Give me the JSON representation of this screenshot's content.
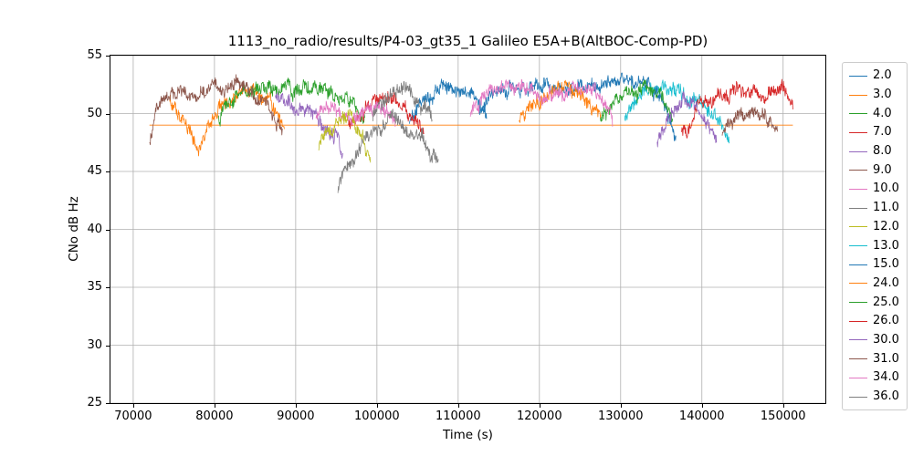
{
  "chart_data": {
    "type": "line",
    "title": "1113_no_radio/results/P4-03_gt35_1 Galileo E5A+B(AltBOC-Comp-PD)",
    "xlabel": "Time (s)",
    "ylabel": "CNo dB Hz",
    "xlim": [
      67200,
      155200
    ],
    "ylim": [
      25,
      55
    ],
    "xticks": [
      70000,
      80000,
      90000,
      100000,
      110000,
      120000,
      130000,
      140000,
      150000
    ],
    "yticks": [
      25,
      30,
      35,
      40,
      45,
      50,
      55
    ],
    "grid": true,
    "grid_color": "#b0b0b0",
    "legend_position": "right",
    "noise": {
      "step": 50,
      "fast": 0.45,
      "slow": 0.5
    },
    "reference_line": {
      "y": 49,
      "x": [
        72000,
        151200
      ],
      "color": "#ff7f0e"
    },
    "series": [
      {
        "name": "2.0",
        "color": "#1f77b4",
        "points": [
          [
            104000,
            49.3
          ],
          [
            105500,
            51.0
          ],
          [
            107000,
            52.0
          ],
          [
            109000,
            52.4
          ],
          [
            111000,
            52.2
          ],
          [
            112500,
            51.2
          ],
          [
            113500,
            49.8
          ]
        ]
      },
      {
        "name": "3.0",
        "color": "#ff7f0e",
        "points": [
          [
            74500,
            51.6
          ],
          [
            75800,
            50.0
          ],
          [
            77200,
            48.0
          ],
          [
            78200,
            47.2
          ],
          [
            79500,
            49.2
          ],
          [
            81000,
            50.8
          ],
          [
            83000,
            51.8
          ],
          [
            85000,
            52.0
          ],
          [
            86500,
            51.2
          ],
          [
            87800,
            50.0
          ],
          [
            88600,
            48.8
          ]
        ]
      },
      {
        "name": "4.0",
        "color": "#2ca02c",
        "points": [
          [
            80500,
            49.2
          ],
          [
            82000,
            50.8
          ],
          [
            84000,
            51.8
          ],
          [
            86500,
            52.2
          ],
          [
            89000,
            52.4
          ],
          [
            91500,
            52.4
          ],
          [
            93500,
            52.2
          ],
          [
            95500,
            51.6
          ],
          [
            97000,
            50.8
          ],
          [
            98500,
            49.4
          ]
        ]
      },
      {
        "name": "7.0",
        "color": "#d62728",
        "points": [
          [
            96500,
            48.8
          ],
          [
            98000,
            50.0
          ],
          [
            100000,
            51.2
          ],
          [
            102000,
            51.3
          ],
          [
            103500,
            50.5
          ],
          [
            105000,
            49.3
          ],
          [
            105800,
            48.4
          ]
        ]
      },
      {
        "name": "8.0",
        "color": "#9467bd",
        "points": [
          [
            87500,
            51.4
          ],
          [
            89000,
            51.2
          ],
          [
            91000,
            50.4
          ],
          [
            93000,
            49.4
          ],
          [
            94500,
            48.4
          ],
          [
            95800,
            47.0
          ]
        ]
      },
      {
        "name": "9.0",
        "color": "#8c564b",
        "points": [
          [
            72000,
            47.6
          ],
          [
            72600,
            50.0
          ],
          [
            73500,
            51.0
          ],
          [
            75500,
            51.6
          ],
          [
            78000,
            52.0
          ],
          [
            80500,
            52.4
          ],
          [
            82500,
            52.3
          ],
          [
            84500,
            51.8
          ],
          [
            86000,
            51.0
          ],
          [
            87300,
            49.8
          ],
          [
            88400,
            47.6
          ]
        ]
      },
      {
        "name": "10.0",
        "color": "#e377c2",
        "points": [
          [
            92500,
            49.6
          ],
          [
            94000,
            50.6
          ],
          [
            95500,
            50.3
          ],
          [
            97000,
            49.8
          ],
          [
            98500,
            49.9
          ],
          [
            100000,
            50.5
          ],
          [
            101200,
            50.0
          ],
          [
            102300,
            48.9
          ]
        ]
      },
      {
        "name": "11.0",
        "color": "#7f7f7f",
        "points": [
          [
            95200,
            43.6
          ],
          [
            96200,
            45.3
          ],
          [
            97500,
            46.8
          ],
          [
            99000,
            48.0
          ],
          [
            100500,
            48.8
          ],
          [
            102000,
            49.2
          ],
          [
            103500,
            48.8
          ],
          [
            105000,
            48.0
          ],
          [
            106300,
            46.9
          ],
          [
            107600,
            45.4
          ]
        ]
      },
      {
        "name": "12.0",
        "color": "#bcbd22",
        "points": [
          [
            92800,
            46.6
          ],
          [
            93800,
            48.2
          ],
          [
            95000,
            49.6
          ],
          [
            96300,
            49.9
          ],
          [
            97300,
            49.1
          ],
          [
            98300,
            47.8
          ],
          [
            99200,
            46.3
          ]
        ]
      },
      {
        "name": "13.0",
        "color": "#17becf",
        "points": [
          [
            130500,
            49.8
          ],
          [
            132000,
            51.2
          ],
          [
            134000,
            52.2
          ],
          [
            136000,
            52.1
          ],
          [
            138000,
            51.4
          ],
          [
            140000,
            50.6
          ],
          [
            141800,
            49.6
          ],
          [
            143400,
            48.0
          ]
        ]
      },
      {
        "name": "15.0",
        "color": "#1f77b4",
        "points": [
          [
            112500,
            50.2
          ],
          [
            114000,
            51.4
          ],
          [
            116000,
            52.0
          ],
          [
            118500,
            52.4
          ],
          [
            121000,
            52.2
          ],
          [
            123500,
            52.4
          ],
          [
            126000,
            52.5
          ],
          [
            128500,
            52.6
          ],
          [
            130500,
            52.8
          ],
          [
            132000,
            53.0
          ],
          [
            133500,
            52.5
          ],
          [
            134800,
            51.4
          ],
          [
            135900,
            49.8
          ],
          [
            136800,
            47.7
          ]
        ]
      },
      {
        "name": "24.0",
        "color": "#ff7f0e",
        "points": [
          [
            117500,
            49.2
          ],
          [
            119000,
            50.5
          ],
          [
            121000,
            51.5
          ],
          [
            123000,
            52.1
          ],
          [
            124800,
            51.7
          ],
          [
            126200,
            50.7
          ],
          [
            127600,
            49.2
          ]
        ]
      },
      {
        "name": "25.0",
        "color": "#2ca02c",
        "points": [
          [
            127500,
            49.5
          ],
          [
            129000,
            50.8
          ],
          [
            130800,
            51.8
          ],
          [
            132500,
            52.2
          ],
          [
            134000,
            51.8
          ],
          [
            135300,
            51.0
          ],
          [
            136400,
            50.0
          ]
        ]
      },
      {
        "name": "26.0",
        "color": "#d62728",
        "points": [
          [
            137500,
            48.0
          ],
          [
            139000,
            49.8
          ],
          [
            141000,
            51.2
          ],
          [
            143500,
            51.8
          ],
          [
            145500,
            52.1
          ],
          [
            147000,
            51.8
          ],
          [
            148500,
            52.0
          ],
          [
            150000,
            52.3
          ],
          [
            151200,
            50.8
          ]
        ]
      },
      {
        "name": "30.0",
        "color": "#9467bd",
        "points": [
          [
            134500,
            47.6
          ],
          [
            136000,
            49.6
          ],
          [
            137500,
            50.8
          ],
          [
            139000,
            50.4
          ],
          [
            140500,
            49.2
          ],
          [
            141800,
            47.7
          ]
        ]
      },
      {
        "name": "31.0",
        "color": "#8c564b",
        "points": [
          [
            142500,
            47.9
          ],
          [
            144000,
            49.3
          ],
          [
            146000,
            50.2
          ],
          [
            147800,
            49.7
          ],
          [
            149300,
            48.4
          ]
        ]
      },
      {
        "name": "34.0",
        "color": "#e377c2",
        "points": [
          [
            111500,
            49.8
          ],
          [
            113000,
            51.4
          ],
          [
            115000,
            52.3
          ],
          [
            117000,
            52.5
          ],
          [
            118800,
            51.9
          ],
          [
            120300,
            50.8
          ],
          [
            122000,
            51.4
          ],
          [
            124000,
            52.1
          ],
          [
            126000,
            52.3
          ],
          [
            127500,
            51.5
          ],
          [
            129000,
            49.9
          ]
        ]
      },
      {
        "name": "36.0",
        "color": "#7f7f7f",
        "points": [
          [
            99500,
            49.9
          ],
          [
            101000,
            51.3
          ],
          [
            102500,
            52.2
          ],
          [
            104000,
            52.0
          ],
          [
            105500,
            51.0
          ],
          [
            106800,
            49.7
          ]
        ]
      }
    ]
  }
}
